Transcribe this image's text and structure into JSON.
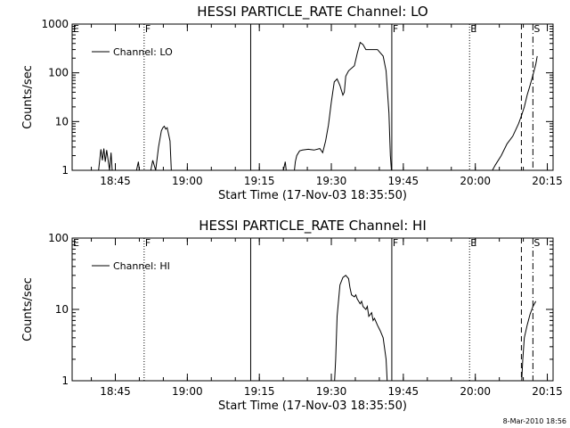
{
  "chart_data": [
    {
      "type": "line",
      "title": "HESSI PARTICLE_RATE Channel: LO",
      "xlabel": "Start Time (17-Nov-03 18:35:50)",
      "ylabel": "Counts/sec",
      "yscale": "log",
      "xlim": [
        18.6,
        20.27
      ],
      "ylim": [
        1,
        1000
      ],
      "xticks": [
        {
          "value": 18.75,
          "label": "18:45"
        },
        {
          "value": 19.0,
          "label": "19:00"
        },
        {
          "value": 19.25,
          "label": "19:15"
        },
        {
          "value": 19.5,
          "label": "19:30"
        },
        {
          "value": 19.75,
          "label": "19:45"
        },
        {
          "value": 20.0,
          "label": "20:00"
        },
        {
          "value": 20.25,
          "label": "20:15"
        }
      ],
      "yticks": [
        {
          "value": 1,
          "label": "1"
        },
        {
          "value": 10,
          "label": "10"
        },
        {
          "value": 100,
          "label": "100"
        },
        {
          "value": 1000,
          "label": "1000"
        }
      ],
      "legend": {
        "label": "Channel: LO",
        "position": "top-left"
      },
      "markers": [
        {
          "x": 18.6,
          "label": "E",
          "style": "none"
        },
        {
          "x": 18.85,
          "label": "F",
          "style": "dotted"
        },
        {
          "x": 19.22,
          "label": "",
          "style": "solid"
        },
        {
          "x": 19.71,
          "label": "F",
          "style": "solid"
        },
        {
          "x": 19.98,
          "label": "E",
          "style": "dotted"
        },
        {
          "x": 20.16,
          "label": "",
          "style": "dashed"
        },
        {
          "x": 20.2,
          "label": "S",
          "style": "dashdot"
        }
      ],
      "series": [
        {
          "segments": [
            [
              [
                18.69,
                0.8
              ],
              [
                18.7,
                2.7
              ],
              [
                18.705,
                1.6
              ],
              [
                18.71,
                2.8
              ],
              [
                18.715,
                1.5
              ],
              [
                18.72,
                2.6
              ],
              [
                18.73,
                1.0
              ],
              [
                18.735,
                2.3
              ],
              [
                18.74,
                0.8
              ]
            ],
            [
              [
                18.82,
                0.8
              ],
              [
                18.83,
                1.5
              ],
              [
                18.835,
                0.8
              ]
            ],
            [
              [
                18.87,
                0.8
              ],
              [
                18.88,
                1.6
              ],
              [
                18.89,
                1.0
              ],
              [
                18.9,
                3.0
              ],
              [
                18.91,
                6.5
              ],
              [
                18.915,
                7.5
              ],
              [
                18.92,
                8.0
              ],
              [
                18.925,
                7.0
              ],
              [
                18.93,
                7.5
              ],
              [
                18.94,
                4.0
              ],
              [
                18.945,
                0.8
              ]
            ],
            [
              [
                19.33,
                0.8
              ],
              [
                19.34,
                1.5
              ],
              [
                19.345,
                0.8
              ]
            ],
            [
              [
                19.37,
                0.8
              ],
              [
                19.375,
                1.5
              ],
              [
                19.38,
                2.0
              ],
              [
                19.39,
                2.5
              ],
              [
                19.4,
                2.6
              ],
              [
                19.42,
                2.7
              ],
              [
                19.44,
                2.6
              ],
              [
                19.46,
                2.8
              ],
              [
                19.47,
                2.3
              ],
              [
                19.48,
                4.0
              ],
              [
                19.49,
                8.5
              ],
              [
                19.5,
                25
              ],
              [
                19.51,
                65
              ],
              [
                19.52,
                75
              ],
              [
                19.53,
                55
              ],
              [
                19.54,
                35
              ],
              [
                19.545,
                40
              ],
              [
                19.55,
                85
              ],
              [
                19.56,
                110
              ],
              [
                19.58,
                140
              ],
              [
                19.59,
                250
              ],
              [
                19.6,
                420
              ],
              [
                19.61,
                380
              ],
              [
                19.62,
                300
              ],
              [
                19.64,
                300
              ],
              [
                19.66,
                300
              ],
              [
                19.68,
                220
              ],
              [
                19.69,
                110
              ],
              [
                19.7,
                15
              ],
              [
                19.705,
                2.0
              ],
              [
                19.71,
                0.8
              ]
            ],
            [
              [
                20.05,
                0.8
              ],
              [
                20.07,
                1.3
              ],
              [
                20.09,
                2.0
              ],
              [
                20.11,
                3.5
              ],
              [
                20.13,
                5.0
              ],
              [
                20.15,
                9.0
              ],
              [
                20.16,
                13
              ],
              [
                20.17,
                20
              ],
              [
                20.18,
                35
              ],
              [
                20.19,
                55
              ],
              [
                20.2,
                90
              ],
              [
                20.21,
                150
              ],
              [
                20.215,
                220
              ]
            ]
          ]
        }
      ]
    },
    {
      "type": "line",
      "title": "HESSI PARTICLE_RATE Channel: HI",
      "xlabel": "Start Time (17-Nov-03 18:35:50)",
      "ylabel": "Counts/sec",
      "yscale": "log",
      "xlim": [
        18.6,
        20.27
      ],
      "ylim": [
        1,
        100
      ],
      "xticks": [
        {
          "value": 18.75,
          "label": "18:45"
        },
        {
          "value": 19.0,
          "label": "19:00"
        },
        {
          "value": 19.25,
          "label": "19:15"
        },
        {
          "value": 19.5,
          "label": "19:30"
        },
        {
          "value": 19.75,
          "label": "19:45"
        },
        {
          "value": 20.0,
          "label": "20:00"
        },
        {
          "value": 20.25,
          "label": "20:15"
        }
      ],
      "yticks": [
        {
          "value": 1,
          "label": "1"
        },
        {
          "value": 10,
          "label": "10"
        },
        {
          "value": 100,
          "label": "100"
        }
      ],
      "legend": {
        "label": "Channel: HI",
        "position": "top-left"
      },
      "markers": [
        {
          "x": 18.6,
          "label": "E",
          "style": "none"
        },
        {
          "x": 18.85,
          "label": "F",
          "style": "dotted"
        },
        {
          "x": 19.22,
          "label": "",
          "style": "solid"
        },
        {
          "x": 19.71,
          "label": "F",
          "style": "solid"
        },
        {
          "x": 19.98,
          "label": "E",
          "style": "dotted"
        },
        {
          "x": 20.16,
          "label": "",
          "style": "dashed"
        },
        {
          "x": 20.2,
          "label": "S",
          "style": "dashdot"
        }
      ],
      "series": [
        {
          "segments": [
            [
              [
                19.51,
                0.8
              ],
              [
                19.515,
                2.0
              ],
              [
                19.52,
                8.0
              ],
              [
                19.53,
                22
              ],
              [
                19.54,
                28
              ],
              [
                19.55,
                30
              ],
              [
                19.56,
                27
              ],
              [
                19.565,
                20
              ],
              [
                19.57,
                16
              ],
              [
                19.58,
                15
              ],
              [
                19.585,
                16
              ],
              [
                19.59,
                14
              ],
              [
                19.6,
                12
              ],
              [
                19.605,
                13
              ],
              [
                19.61,
                11
              ],
              [
                19.62,
                10
              ],
              [
                19.625,
                11
              ],
              [
                19.63,
                8.0
              ],
              [
                19.64,
                9.0
              ],
              [
                19.645,
                7.0
              ],
              [
                19.65,
                7.5
              ],
              [
                19.66,
                6.0
              ],
              [
                19.67,
                5.0
              ],
              [
                19.68,
                4.0
              ],
              [
                19.69,
                2.0
              ],
              [
                19.695,
                0.8
              ]
            ],
            [
              [
                20.16,
                0.8
              ],
              [
                20.165,
                2.0
              ],
              [
                20.17,
                4.0
              ],
              [
                20.18,
                6.0
              ],
              [
                20.19,
                8.5
              ],
              [
                20.2,
                11
              ],
              [
                20.21,
                13
              ]
            ]
          ]
        }
      ]
    }
  ],
  "footer_stamp": "8-Mar-2010 18:56"
}
